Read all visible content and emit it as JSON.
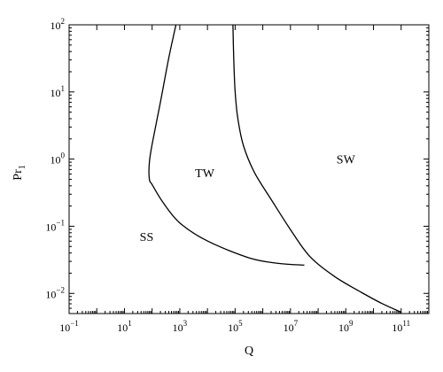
{
  "chart_data": {
    "type": "line",
    "xlabel": "Q",
    "ylabel": "Pr",
    "ylabel_subscript": "1",
    "xscale": "log",
    "yscale": "log",
    "xlim_exp": [
      -1,
      12
    ],
    "ylim_exp": [
      -2.3,
      2
    ],
    "xticks": [
      {
        "base": "10",
        "exp": "−1",
        "value_exp": -1
      },
      {
        "base": "10",
        "exp": "1",
        "value_exp": 1
      },
      {
        "base": "10",
        "exp": "3",
        "value_exp": 3
      },
      {
        "base": "10",
        "exp": "5",
        "value_exp": 5
      },
      {
        "base": "10",
        "exp": "7",
        "value_exp": 7
      },
      {
        "base": "10",
        "exp": "9",
        "value_exp": 9
      },
      {
        "base": "10",
        "exp": "11",
        "value_exp": 11
      }
    ],
    "yticks": [
      {
        "base": "10",
        "exp": "−2",
        "value_exp": -2
      },
      {
        "base": "10",
        "exp": "−1",
        "value_exp": -1
      },
      {
        "base": "10",
        "exp": "0",
        "value_exp": 0
      },
      {
        "base": "10",
        "exp": "1",
        "value_exp": 1
      },
      {
        "base": "10",
        "exp": "2",
        "value_exp": 2
      }
    ],
    "series": [
      {
        "x": [
          2.86,
          2.6,
          2.3,
          2.0,
          1.9,
          1.9,
          2.0,
          2.4,
          3.0,
          4.0,
          5.5,
          6.5,
          7.5
        ],
        "y": [
          2.0,
          1.5,
          0.85,
          0.22,
          -0.05,
          -0.3,
          -0.38,
          -0.65,
          -0.95,
          -1.22,
          -1.47,
          -1.55,
          -1.58
        ]
      },
      {
        "x": [
          4.92,
          4.95,
          5.0,
          5.1,
          5.3,
          5.7,
          6.3,
          7.0,
          7.7,
          8.6,
          9.5,
          10.3,
          11.0
        ],
        "y": [
          2.0,
          1.5,
          1.0,
          0.6,
          0.2,
          -0.2,
          -0.6,
          -1.05,
          -1.45,
          -1.75,
          -1.97,
          -2.15,
          -2.28
        ]
      }
    ],
    "annotations": [
      {
        "text": "SS",
        "x_exp": 1.8,
        "y_exp": -1.15
      },
      {
        "text": "TW",
        "x_exp": 3.9,
        "y_exp": -0.2
      },
      {
        "text": "SW",
        "x_exp": 9.0,
        "y_exp": 0.0
      }
    ]
  }
}
